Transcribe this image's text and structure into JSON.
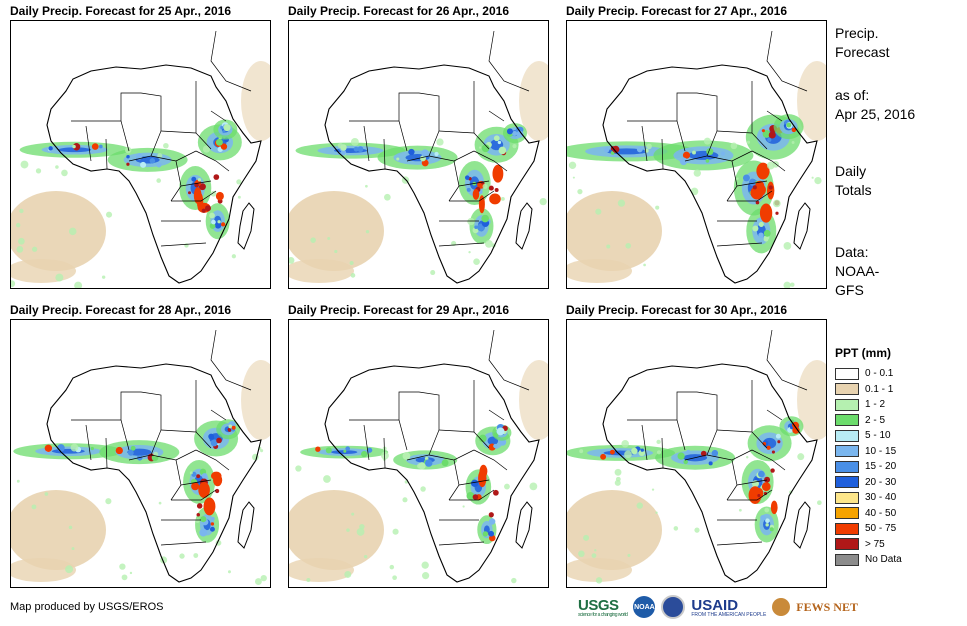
{
  "panels": [
    {
      "title": "Daily Precip. Forecast for 25 Apr., 2016",
      "rain_level": "moderate"
    },
    {
      "title": "Daily Precip. Forecast for 26 Apr., 2016",
      "rain_level": "moderate"
    },
    {
      "title": "Daily Precip. Forecast for 27 Apr., 2016",
      "rain_level": "heavy"
    },
    {
      "title": "Daily Precip. Forecast for 28 Apr., 2016",
      "rain_level": "moderate"
    },
    {
      "title": "Daily Precip. Forecast for 29 Apr., 2016",
      "rain_level": "light"
    },
    {
      "title": "Daily Precip. Forecast for 30 Apr., 2016",
      "rain_level": "moderate"
    }
  ],
  "info": {
    "heading_line1": "Precip.",
    "heading_line2": "Forecast",
    "asof_line1": "as of:",
    "asof_line2": "Apr 25, 2016",
    "totals_line1": "Daily",
    "totals_line2": "Totals",
    "data_line1": "Data:",
    "data_line2": "NOAA-",
    "data_line3": "GFS"
  },
  "legend": {
    "title": "PPT (mm)",
    "items": [
      {
        "label": "0 - 0.1",
        "color": "#ffffff"
      },
      {
        "label": "0.1 - 1",
        "color": "#e8d3b0"
      },
      {
        "label": "1 - 2",
        "color": "#b5f0b0"
      },
      {
        "label": "2 - 5",
        "color": "#6cdc6c"
      },
      {
        "label": "5 - 10",
        "color": "#b8ecf5"
      },
      {
        "label": "10 - 15",
        "color": "#7ab6ee"
      },
      {
        "label": "15 - 20",
        "color": "#4a8fe6"
      },
      {
        "label": "20 - 30",
        "color": "#1f5fdc"
      },
      {
        "label": "30 - 40",
        "color": "#fde68a"
      },
      {
        "label": "40 - 50",
        "color": "#f5a300"
      },
      {
        "label": "50 - 75",
        "color": "#f03c00"
      },
      {
        "label": "> 75",
        "color": "#b01818"
      },
      {
        "label": "No Data",
        "color": "#8c8c8c"
      }
    ]
  },
  "credit": "Map produced by USGS/EROS",
  "logos": {
    "usgs": "USGS",
    "usgs_tagline": "science for a changing world",
    "noaa": "NOAA",
    "usaid": "USAID",
    "usaid_tagline": "FROM THE AMERICAN PEOPLE",
    "fews": "FEWS NET"
  }
}
